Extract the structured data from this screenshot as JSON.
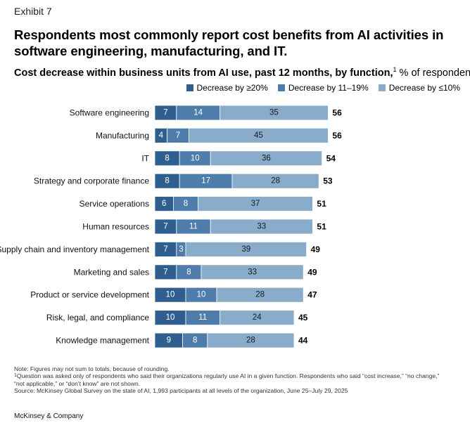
{
  "exhibit_label": "Exhibit 7",
  "headline": "Respondents most commonly report cost benefits from AI activities in software engineering, manufacturing, and IT.",
  "subtitle": {
    "bold": "Cost decrease within business units from AI use, past 12 months, by function,",
    "footnote_mark": "1",
    "regular": " % of respondents"
  },
  "colors": {
    "dark": "#2f5f8e",
    "medium": "#4e7dac",
    "light": "#8aaccb"
  },
  "chart_data": {
    "type": "bar",
    "orientation": "horizontal",
    "stacked": true,
    "categories": [
      "Software engineering",
      "Manufacturing",
      "IT",
      "Strategy and corporate finance",
      "Service operations",
      "Human resources",
      "Supply chain and inventory management",
      "Marketing and sales",
      "Product or service development",
      "Risk, legal, and compliance",
      "Knowledge management"
    ],
    "series": [
      {
        "name": "Decrease by ≥20%",
        "color": "#2f5f8e",
        "values": [
          7,
          4,
          8,
          8,
          6,
          7,
          7,
          7,
          10,
          10,
          9
        ]
      },
      {
        "name": "Decrease by 11–19%",
        "color": "#4e7dac",
        "values": [
          14,
          7,
          10,
          17,
          8,
          11,
          3,
          8,
          10,
          11,
          8
        ]
      },
      {
        "name": "Decrease by ≤10%",
        "color": "#8aaccb",
        "values": [
          35,
          45,
          36,
          28,
          37,
          33,
          39,
          33,
          28,
          24,
          28
        ]
      }
    ],
    "totals": [
      56,
      56,
      54,
      53,
      51,
      51,
      49,
      49,
      47,
      45,
      44
    ],
    "legend_position": "top-right"
  },
  "footnotes": {
    "note": "Note: Figures may not sum to totals, because of rounding.",
    "fn1_mark": "1",
    "fn1_line1": "Question was asked only of respondents who said their organizations regularly use AI in a given function. Respondents who said “cost increase,” “no change,”",
    "fn1_line2": "“not applicable,” or “don’t know” are not shown.",
    "source": "Source: McKinsey Global Survey on the state of AI, 1,993 participants at all levels of the organization, June 25–July 29, 2025"
  },
  "brand": "McKinsey & Company"
}
